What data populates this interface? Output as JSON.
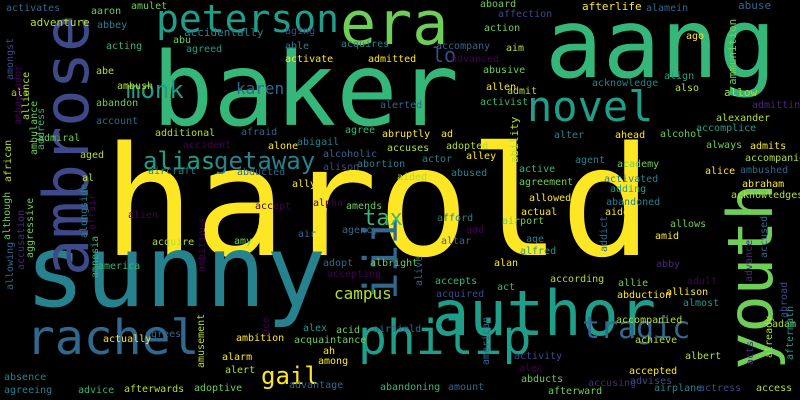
{
  "palette": {
    "yellow": "#fde725",
    "lime": "#b5de2b",
    "green": "#6ece58",
    "teal_green": "#35b779",
    "teal": "#1f9e89",
    "blue_teal": "#26828e",
    "blue": "#31688e",
    "indigo": "#3e4989",
    "purple": "#482878",
    "dark_purple": "#440154"
  },
  "words": [
    "harold",
    "baker",
    "aang",
    "sunny",
    "author",
    "ambrose",
    "youth",
    "rachel",
    "philip",
    "era",
    "novel",
    "peterson",
    "iii",
    "tragic",
    "monk",
    "alias",
    "getaway",
    "gail",
    "campus",
    "tax",
    "karen",
    "lo",
    "ability",
    "adventure",
    "abbey",
    "afterlife",
    "alamein",
    "affection",
    "ammunition",
    "abuse",
    "activates",
    "aaron",
    "amulet",
    "aboard",
    "abu",
    "accidentally",
    "aging",
    "action",
    "ago",
    "abe",
    "acting",
    "agreed",
    "able",
    "acquires",
    "accompany",
    "aim",
    "ambush",
    "activate",
    "admitted",
    "advanced",
    "abusive",
    "acknowledge",
    "align",
    "also",
    "allow",
    "admitting",
    "ali",
    "abandon",
    "admit",
    "allen",
    "activist",
    "alerted",
    "alexander",
    "accomplice",
    "account",
    "additional",
    "afraid",
    "agree",
    "abruptly",
    "ad",
    "alcohol",
    "always",
    "admits",
    "admiral",
    "accident",
    "abigail",
    "ahead",
    "alter",
    "accompanies",
    "aged",
    "alone",
    "alcoholic",
    "accuses",
    "adopted",
    "alley",
    "agent",
    "academy",
    "alice",
    "ambushed",
    "aircraft",
    "abducted",
    "alison",
    "abortion",
    "actor",
    "active",
    "abraham",
    "acknowledges",
    "al",
    "ally",
    "aided",
    "abused",
    "agreement",
    "activated",
    "adding",
    "alpha",
    "accept",
    "amends",
    "allowed",
    "actual",
    "aide",
    "abandoned",
    "amid",
    "allows",
    "agency",
    "alien",
    "afford",
    "airport",
    "addict",
    "accused",
    "air",
    "ambitious",
    "amy",
    "altar",
    "add",
    "age",
    "advance",
    "acquire",
    "albright",
    "alan",
    "alfred",
    "america",
    "adopt",
    "accepts",
    "act",
    "according",
    "allie",
    "adult",
    "abby",
    "accepting",
    "acquired",
    "alive",
    "abduction",
    "allison",
    "almost",
    "ambition",
    "amusement",
    "agrees",
    "alex",
    "acid",
    "airfield",
    "accompanied",
    "adam",
    "actually",
    "alarm",
    "acquaintance",
    "ah",
    "achieve",
    "albert",
    "alert",
    "among",
    "activity",
    "alec",
    "accepted",
    "absence",
    "accusing",
    "advises",
    "afterwards",
    "adoptive",
    "advantage",
    "abandoning",
    "amount",
    "afterward",
    "abducts",
    "airplane",
    "actress",
    "access",
    "agreeing",
    "advice",
    "already",
    "aftermath",
    "amongst",
    "alliance",
    "ambassador",
    "address",
    "ambulance",
    "african",
    "although",
    "affair",
    "alongside",
    "aggressive",
    "amnesia",
    "allowing",
    "accusation",
    "american",
    "ace",
    "acts",
    "abroad"
  ]
}
